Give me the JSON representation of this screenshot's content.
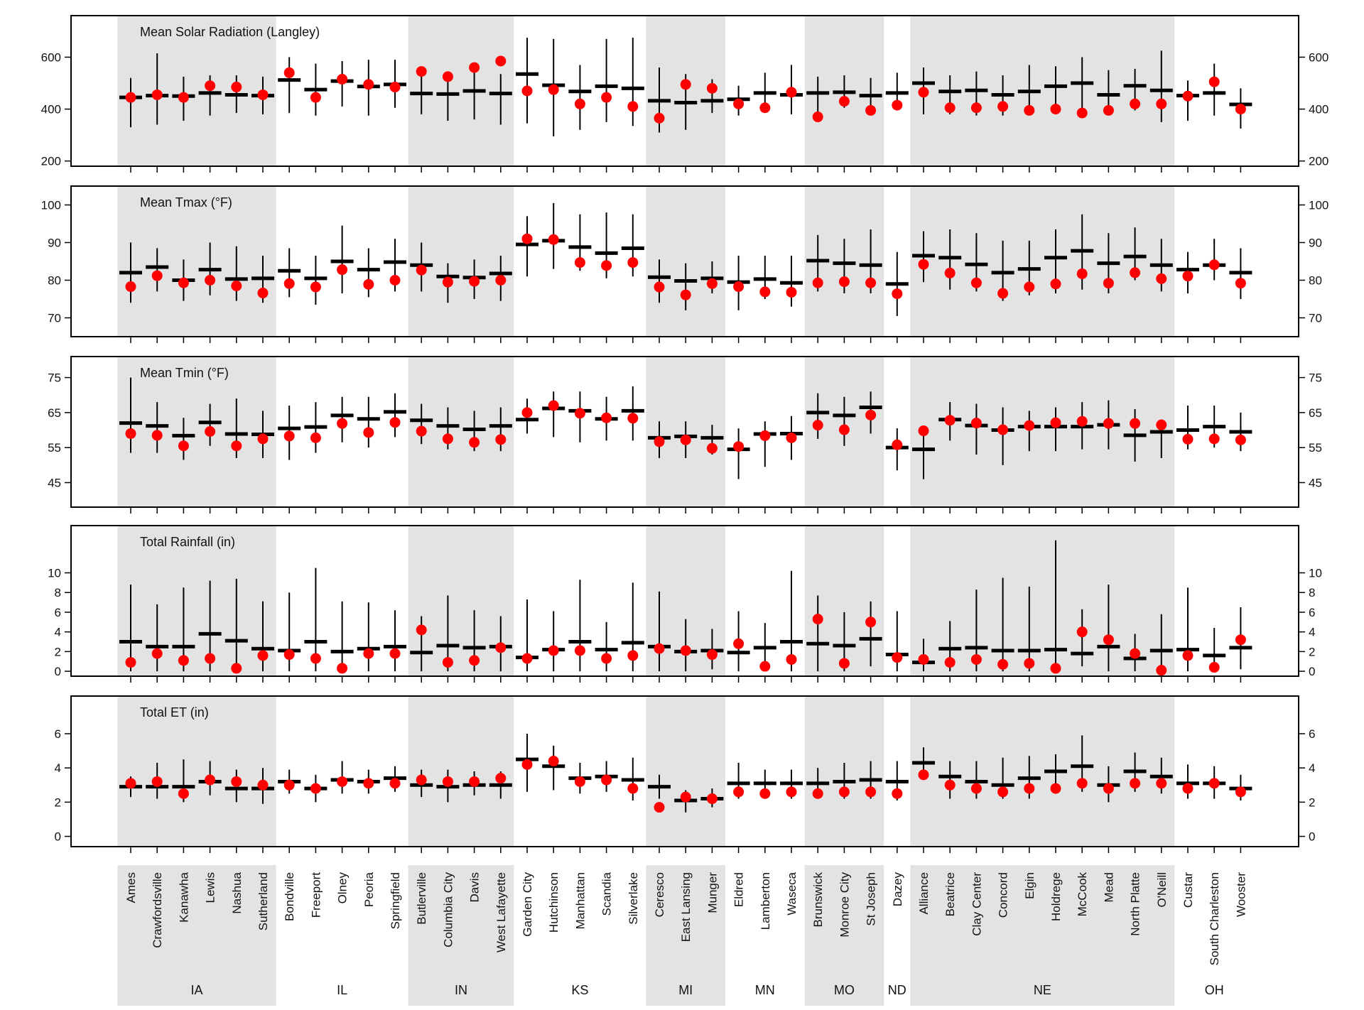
{
  "sites": [
    "Ames",
    "Crawfordsville",
    "Kanawha",
    "Lewis",
    "Nashua",
    "Sutherland",
    "Bondville",
    "Freeport",
    "Olney",
    "Peoria",
    "Springfield",
    "Butlerville",
    "Columbia City",
    "Davis",
    "West Lafayette",
    "Garden City",
    "Hutchinson",
    "Manhattan",
    "Scandia",
    "Silverlake",
    "Ceresco",
    "East Lansing",
    "Munger",
    "Eldred",
    "Lamberton",
    "Waseca",
    "Brunswick",
    "Monroe City",
    "St Joseph",
    "Dazey",
    "Alliance",
    "Beatrice",
    "Clay Center",
    "Concord",
    "Elgin",
    "Holdrege",
    "McCook",
    "Mead",
    "North Platte",
    "O'Neill",
    "Custar",
    "South Charleston",
    "Wooster"
  ],
  "states": [
    {
      "name": "IA",
      "start": 0,
      "end": 5,
      "shaded": true
    },
    {
      "name": "IL",
      "start": 6,
      "end": 10,
      "shaded": false
    },
    {
      "name": "IN",
      "start": 11,
      "end": 14,
      "shaded": true
    },
    {
      "name": "KS",
      "start": 15,
      "end": 19,
      "shaded": false
    },
    {
      "name": "MI",
      "start": 20,
      "end": 22,
      "shaded": true
    },
    {
      "name": "MN",
      "start": 23,
      "end": 25,
      "shaded": false
    },
    {
      "name": "MO",
      "start": 26,
      "end": 28,
      "shaded": true
    },
    {
      "name": "ND",
      "start": 29,
      "end": 29,
      "shaded": false
    },
    {
      "name": "NE",
      "start": 30,
      "end": 39,
      "shaded": true
    },
    {
      "name": "OH",
      "start": 40,
      "end": 42,
      "shaded": false
    }
  ],
  "colors": {
    "point": "#ff0000",
    "bar": "#000000",
    "shade": "#e3e3e3",
    "frame": "#000000"
  },
  "chart_data": [
    {
      "type": "scatter",
      "title": "Mean Solar Radiation (Langley)",
      "ylim": [
        180,
        760
      ],
      "yticks": [
        200,
        400,
        600
      ],
      "mean": [
        445,
        452,
        450,
        462,
        455,
        452,
        512,
        475,
        508,
        487,
        495,
        460,
        458,
        470,
        460,
        535,
        492,
        468,
        488,
        480,
        432,
        425,
        432,
        438,
        462,
        455,
        462,
        465,
        452,
        462,
        500,
        468,
        472,
        455,
        468,
        488,
        500,
        455,
        490,
        472,
        452,
        462,
        418
      ],
      "low": [
        330,
        340,
        355,
        375,
        385,
        380,
        385,
        375,
        410,
        375,
        405,
        380,
        355,
        360,
        340,
        345,
        295,
        320,
        350,
        335,
        310,
        320,
        385,
        375,
        395,
        380,
        385,
        405,
        390,
        395,
        380,
        380,
        375,
        375,
        385,
        400,
        385,
        380,
        395,
        350,
        355,
        375,
        325
      ],
      "high": [
        520,
        615,
        525,
        530,
        530,
        525,
        600,
        575,
        585,
        590,
        590,
        560,
        535,
        540,
        535,
        675,
        670,
        570,
        670,
        675,
        560,
        535,
        515,
        490,
        540,
        570,
        525,
        530,
        520,
        540,
        560,
        530,
        545,
        530,
        570,
        565,
        600,
        550,
        555,
        625,
        510,
        575,
        480
      ],
      "obs": [
        445,
        455,
        445,
        490,
        485,
        455,
        540,
        445,
        515,
        495,
        485,
        545,
        525,
        560,
        585,
        470,
        475,
        420,
        445,
        410,
        365,
        495,
        480,
        420,
        405,
        465,
        370,
        430,
        395,
        415,
        465,
        405,
        405,
        410,
        395,
        400,
        385,
        395,
        420,
        420,
        450,
        505,
        400
      ]
    },
    {
      "type": "scatter",
      "title": "Mean Tmax (°F)",
      "ylim": [
        65,
        105
      ],
      "yticks": [
        70,
        80,
        90,
        100
      ],
      "mean": [
        82,
        83.5,
        80,
        82.8,
        80.3,
        80.5,
        82.5,
        80.5,
        85,
        82.8,
        84.8,
        84,
        81,
        80.7,
        81.8,
        89.5,
        90.5,
        88.8,
        87.2,
        88.5,
        80.8,
        79.8,
        80.5,
        79.5,
        80.3,
        79.3,
        85.2,
        84.5,
        84,
        79,
        86.5,
        86,
        84.2,
        82,
        83,
        86,
        87.8,
        84.5,
        86.3,
        84,
        82.8,
        84,
        82
      ],
      "low": [
        74,
        77,
        74.5,
        76,
        74.5,
        74,
        75.5,
        73.5,
        76.5,
        75.5,
        77,
        77,
        74,
        75,
        74.5,
        81,
        83,
        82.5,
        80.5,
        81,
        74,
        72,
        76.5,
        72,
        75,
        73,
        77,
        76.5,
        76.5,
        70.5,
        79.5,
        77.5,
        77,
        74.5,
        76,
        76.5,
        77.5,
        76.5,
        80,
        77,
        76.5,
        80,
        75
      ],
      "high": [
        90,
        88.5,
        85.5,
        90,
        89,
        86.5,
        88.5,
        86.5,
        94.5,
        88.5,
        91,
        90,
        84.5,
        85.5,
        86.5,
        97,
        100.5,
        97.5,
        98,
        97.5,
        85.5,
        84.5,
        85,
        86.5,
        86.5,
        86.5,
        92,
        91,
        93.5,
        87.5,
        93,
        93.5,
        92.5,
        90.5,
        90.5,
        93.5,
        97.5,
        92.5,
        94,
        91,
        87.5,
        91,
        88.5
      ],
      "obs": [
        78.3,
        81.2,
        79.3,
        80,
        78.5,
        76.6,
        79.1,
        78.2,
        82.8,
        78.9,
        80,
        82.7,
        79.5,
        79.7,
        80,
        91,
        90.8,
        84.7,
        83.9,
        84.7,
        78.2,
        76.1,
        79.1,
        78.3,
        76.9,
        76.8,
        79.3,
        79.6,
        79.3,
        76.4,
        84.2,
        81.9,
        79.3,
        76.5,
        78.2,
        79,
        81.7,
        79.2,
        82,
        80.4,
        81.1,
        84.1,
        79.2
      ]
    },
    {
      "type": "scatter",
      "title": "Mean Tmin (°F)",
      "ylim": [
        38,
        81
      ],
      "yticks": [
        45,
        55,
        65,
        75
      ],
      "mean": [
        62,
        61.2,
        58.4,
        62.2,
        58.9,
        58.8,
        60.5,
        60.9,
        64.2,
        63.2,
        65.2,
        62.8,
        61.2,
        60.2,
        61.2,
        63,
        66.2,
        65.5,
        63.2,
        65.5,
        57.8,
        58.2,
        57.8,
        54.5,
        58.9,
        59,
        65,
        64.2,
        66.5,
        55,
        54.5,
        63,
        61.3,
        60,
        61,
        61,
        61,
        61.5,
        58.5,
        59.5,
        60,
        61,
        59.5
      ],
      "low": [
        53.5,
        53.5,
        51.5,
        55.5,
        52,
        52,
        51.5,
        53.5,
        56.5,
        55,
        58,
        56,
        54.5,
        54,
        54,
        59,
        58,
        56.5,
        57,
        57,
        52,
        52,
        53,
        46,
        49.5,
        51.5,
        57.5,
        55.5,
        59,
        48.5,
        46,
        57,
        53,
        50,
        54,
        54,
        54.5,
        54.5,
        51,
        52,
        54.5,
        55,
        54
      ],
      "high": [
        75,
        68,
        63.5,
        67.5,
        69,
        65.5,
        67,
        68,
        69.5,
        69.5,
        70.5,
        67.5,
        66.5,
        65.5,
        66.5,
        69,
        71,
        71,
        69.5,
        72.5,
        62.5,
        62.5,
        61.5,
        60.5,
        62.5,
        64,
        70.5,
        69.5,
        71,
        60.5,
        60.5,
        68,
        67.5,
        66.5,
        65.5,
        66.5,
        68,
        68.5,
        66,
        63,
        67,
        67,
        65
      ],
      "obs": [
        59,
        58.5,
        55.5,
        59.6,
        55.5,
        57.5,
        58.3,
        57.8,
        61.9,
        59.3,
        62.2,
        59.7,
        57.5,
        56.5,
        57.3,
        65,
        67,
        64.8,
        63.5,
        63.4,
        56.7,
        57.2,
        54.8,
        55.3,
        58.4,
        57.8,
        61.4,
        60.1,
        64.3,
        55.8,
        59.8,
        62.8,
        62,
        60.1,
        61.3,
        62.1,
        62.5,
        61.9,
        61.9,
        61.5,
        57.4,
        57.5,
        57.2
      ]
    },
    {
      "type": "scatter",
      "title": "Total Rainfall (in)",
      "ylim": [
        -0.5,
        14.8
      ],
      "yticks": [
        0,
        2,
        4,
        6,
        8,
        10
      ],
      "mean": [
        3,
        2.5,
        2.5,
        3.8,
        3.1,
        2.3,
        2.1,
        3,
        2,
        2.3,
        2.5,
        1.9,
        2.6,
        2.4,
        2.5,
        1.4,
        2.2,
        3,
        2.2,
        2.9,
        2.5,
        2,
        2.1,
        1.9,
        2.4,
        3,
        2.8,
        2.6,
        3.3,
        1.7,
        0.9,
        2.3,
        2.4,
        2.1,
        2.1,
        2.2,
        1.8,
        2.5,
        1.3,
        2.1,
        2.2,
        1.6,
        2.4
      ],
      "low": [
        0,
        0,
        0,
        0,
        0,
        0,
        0,
        0,
        0,
        0,
        0,
        0,
        0,
        0,
        0,
        0,
        0,
        0,
        0,
        0,
        0,
        0,
        0.2,
        0,
        0,
        0,
        0,
        0,
        0.5,
        0,
        0,
        0,
        0,
        0,
        0,
        0,
        0.5,
        0,
        0,
        0,
        0,
        0,
        0.2
      ],
      "high": [
        8.8,
        6.8,
        8.5,
        9.2,
        9.4,
        7.1,
        8,
        10.5,
        7.1,
        7,
        6.2,
        5.6,
        7.7,
        6.2,
        5.6,
        7.3,
        6.1,
        9.3,
        5,
        9,
        8.1,
        5.3,
        4.3,
        6.1,
        4.9,
        10.2,
        7.7,
        6,
        7.1,
        6.1,
        3.3,
        5.1,
        8.3,
        9.5,
        8.6,
        13.3,
        6.3,
        8.8,
        3.8,
        5.8,
        8.5,
        4.4,
        6.5
      ],
      "obs": [
        0.9,
        1.8,
        1.1,
        1.3,
        0.3,
        1.6,
        1.7,
        1.3,
        0.3,
        1.8,
        1.8,
        4.2,
        0.9,
        1.1,
        2.4,
        1.3,
        2.1,
        2.1,
        1.3,
        1.6,
        2.3,
        2.1,
        1.7,
        2.8,
        0.5,
        1.2,
        5.3,
        0.8,
        5,
        1.4,
        1.2,
        0.9,
        1.2,
        0.7,
        0.8,
        0.3,
        4,
        3.2,
        1.8,
        0.1,
        1.6,
        0.4,
        3.2
      ]
    },
    {
      "type": "scatter",
      "title": "Total ET (in)",
      "ylim": [
        -0.6,
        8.2
      ],
      "yticks": [
        0,
        2,
        4,
        6
      ],
      "mean": [
        2.9,
        2.9,
        2.9,
        3.2,
        2.8,
        2.8,
        3.2,
        2.8,
        3.3,
        3.2,
        3.4,
        3,
        2.9,
        3,
        3,
        4.5,
        4.1,
        3.4,
        3.5,
        3.3,
        2.9,
        2.1,
        2.2,
        3.1,
        3.1,
        3.1,
        3.1,
        3.2,
        3.3,
        3.2,
        4.3,
        3.5,
        3.2,
        3,
        3.4,
        3.8,
        4.1,
        3,
        3.8,
        3.5,
        3.1,
        3.1,
        2.8
      ],
      "low": [
        2.3,
        2.2,
        2,
        2.4,
        2,
        1.9,
        2.5,
        2,
        2.5,
        2.5,
        2.6,
        2.3,
        2,
        2.4,
        2.2,
        2.6,
        2.7,
        2.5,
        2.6,
        2.1,
        2.2,
        1.4,
        1.7,
        2.2,
        2.3,
        2.2,
        2.2,
        2.2,
        2.2,
        2.1,
        3.5,
        2.2,
        2.2,
        2.2,
        2.2,
        2.6,
        2.6,
        2,
        2.6,
        2.5,
        2.2,
        2.2,
        2.1
      ],
      "high": [
        3.5,
        4.3,
        4.5,
        4.4,
        3.9,
        4,
        3.9,
        3.6,
        4.4,
        3.9,
        4.1,
        3.9,
        3.9,
        3.8,
        3.8,
        6,
        5.3,
        4.3,
        4.4,
        4.6,
        3.6,
        2.7,
        2.8,
        4.3,
        3.9,
        3.9,
        4,
        4.3,
        4.4,
        4.4,
        5.2,
        4.4,
        4.4,
        4.6,
        4.7,
        4.8,
        5.9,
        4.1,
        4.9,
        4.6,
        4.2,
        4.1,
        3.6
      ],
      "obs": [
        3.1,
        3.2,
        2.5,
        3.3,
        3.2,
        3,
        3,
        2.8,
        3.2,
        3.1,
        3.1,
        3.3,
        3.2,
        3.2,
        3.4,
        4.2,
        4.4,
        3.2,
        3.3,
        2.8,
        1.7,
        2.3,
        2.2,
        2.6,
        2.5,
        2.6,
        2.5,
        2.6,
        2.6,
        2.5,
        3.6,
        3,
        2.8,
        2.6,
        2.8,
        2.8,
        3.1,
        2.8,
        3.1,
        3.1,
        2.8,
        3.1,
        2.6
      ]
    }
  ]
}
